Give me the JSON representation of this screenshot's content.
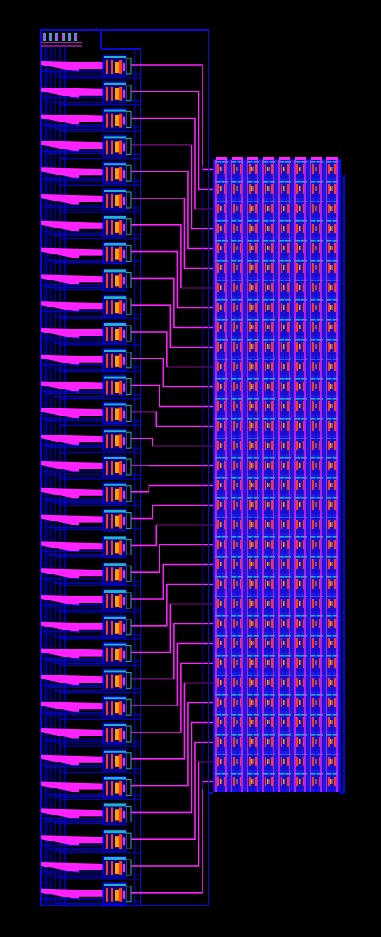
{
  "view": {
    "background": "#000000"
  },
  "layers": {
    "metal1": "#0000ff",
    "metal1_dark": "#000080",
    "metal2": "#ff22ff",
    "poly": "#ff3b1a",
    "diffusion": "#ffa400",
    "contact": "#20b2c8",
    "boundary": "#0b0bd6"
  },
  "decoder": {
    "row_count": 32,
    "header_pins": 6
  },
  "array": {
    "rows": 32,
    "columns": 8
  }
}
